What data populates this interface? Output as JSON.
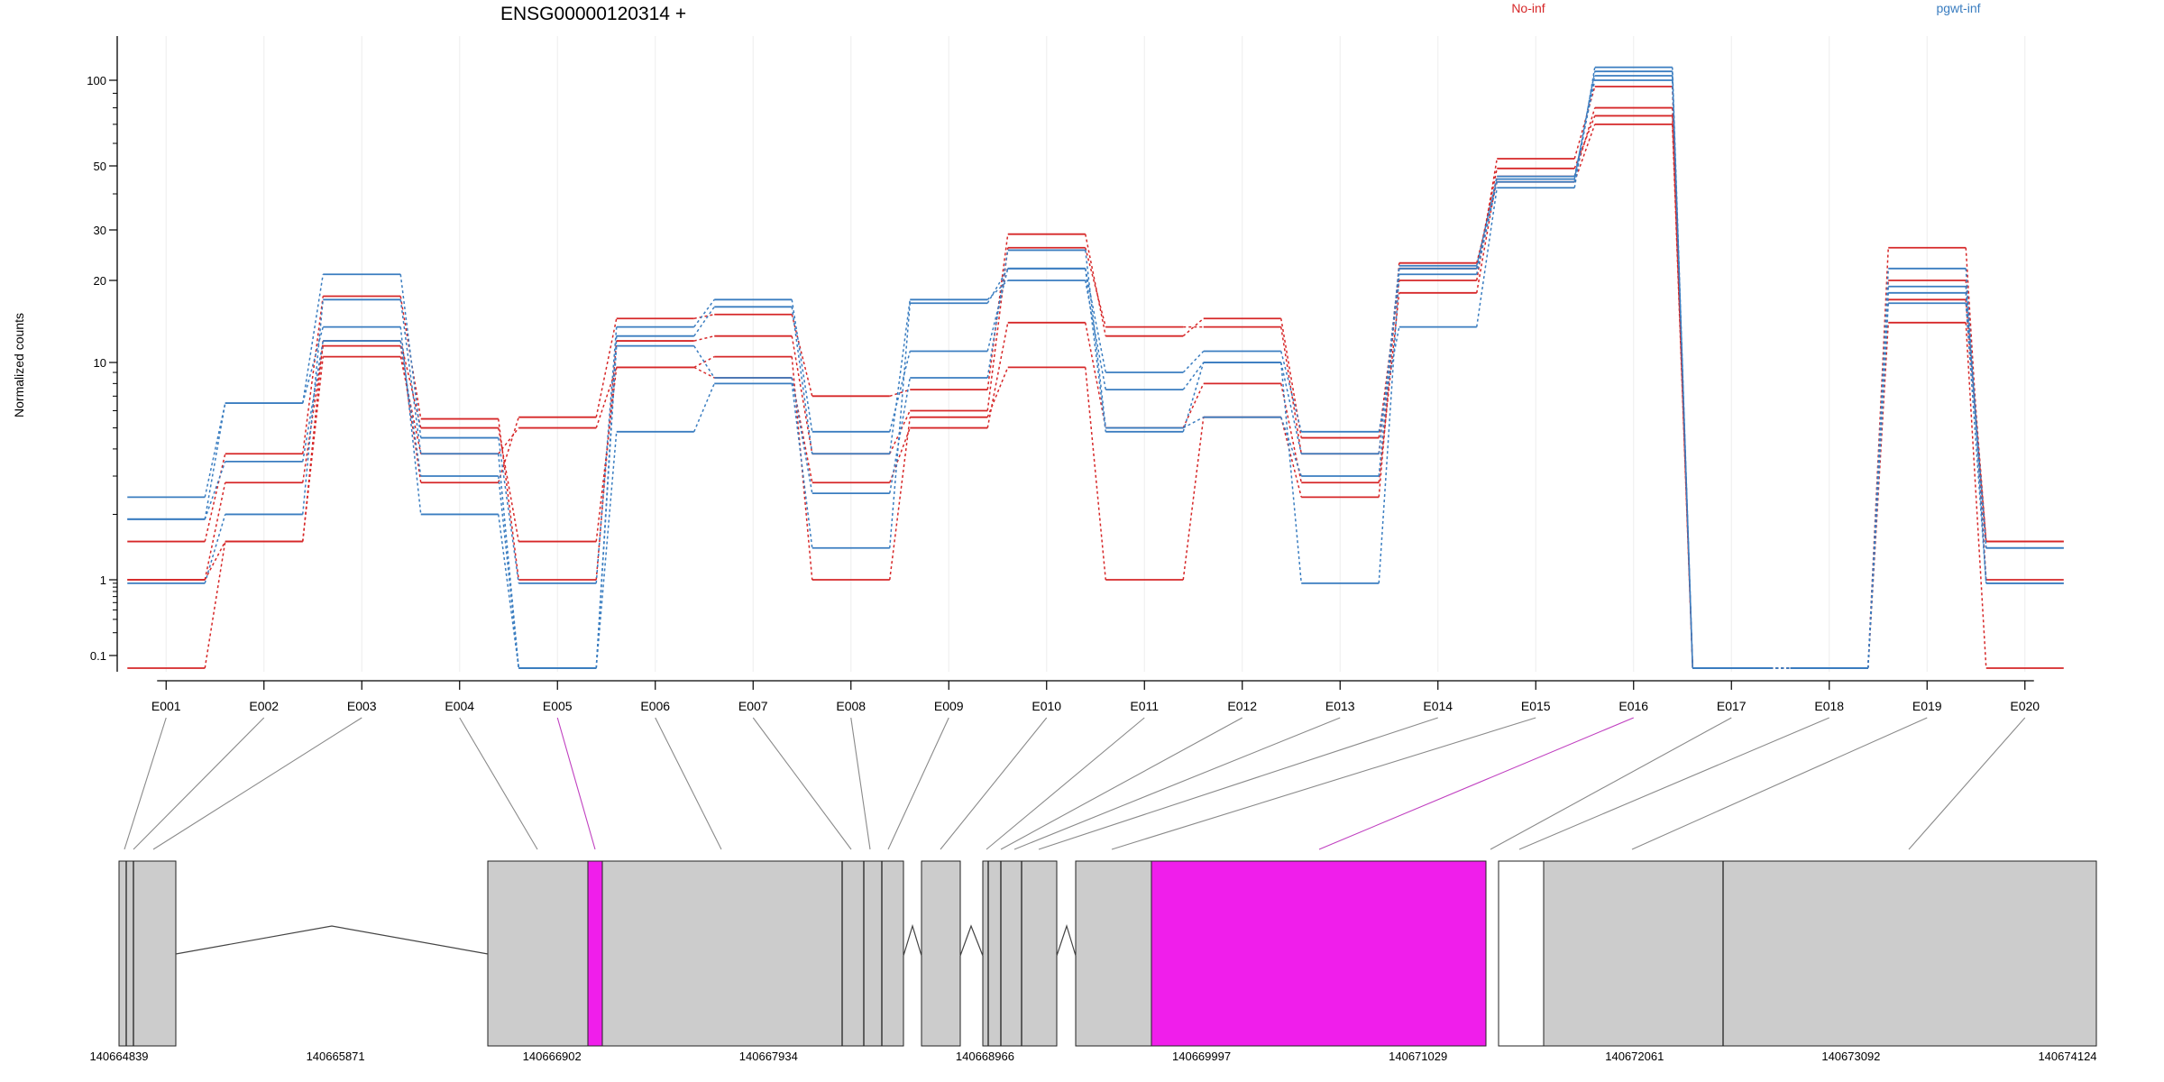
{
  "chart_data": {
    "type": "line",
    "title": "ENSG00000120314 +",
    "ylabel": "Normalized counts",
    "xlabel": "",
    "y_scale": "log",
    "ylim": [
      0.08,
      130
    ],
    "y_ticks": [
      0.1,
      1,
      10,
      20,
      30,
      50,
      100
    ],
    "grid": false,
    "legend_position": "top",
    "legend": [
      {
        "name": "No-inf",
        "color": "#d62728"
      },
      {
        "name": "pgwt-inf",
        "color": "#3a7dc0"
      }
    ],
    "categories": [
      "E001",
      "E002",
      "E003",
      "E004",
      "E005",
      "E006",
      "E007",
      "E008",
      "E009",
      "E010",
      "E011",
      "E012",
      "E013",
      "E014",
      "E015",
      "E016",
      "E017",
      "E018",
      "E019",
      "E020"
    ],
    "highlighted_exons": [
      "E005",
      "E016"
    ],
    "series": [
      {
        "name": "No-inf",
        "values": [
          1.0,
          2.8,
          11.5,
          2.8,
          5.6,
          14.5,
          15,
          7.0,
          7.5,
          29,
          12.5,
          14.5,
          4.5,
          20,
          53,
          95,
          0.07,
          0.07,
          26,
          1.0
        ]
      },
      {
        "name": "No-inf",
        "values": [
          1.5,
          3.8,
          17.5,
          5.5,
          1.0,
          12,
          12.5,
          3.8,
          6.0,
          26,
          13.5,
          13.5,
          3.8,
          22,
          49,
          75,
          0.07,
          0.07,
          20,
          1.5
        ]
      },
      {
        "name": "No-inf",
        "values": [
          0.07,
          1.5,
          12,
          5.0,
          1.5,
          9.5,
          8.5,
          2.8,
          5.0,
          14,
          5.0,
          8.0,
          2.8,
          18,
          46,
          80,
          0.07,
          0.07,
          14,
          0.07
        ]
      },
      {
        "name": "No-inf",
        "values": [
          1.0,
          1.5,
          10.5,
          3.8,
          5.0,
          9.5,
          10.5,
          1.0,
          5.6,
          9.5,
          1.0,
          5.6,
          2.4,
          23,
          44,
          70,
          0.07,
          0.07,
          17,
          1.5
        ]
      },
      {
        "name": "pgwt-inf",
        "values": [
          2.4,
          6.5,
          21,
          4.5,
          0.9,
          13.5,
          17,
          4.8,
          11,
          22,
          9.0,
          11,
          4.8,
          13.5,
          42,
          115,
          0.07,
          0.07,
          22,
          0.9
        ]
      },
      {
        "name": "pgwt-inf",
        "values": [
          1.9,
          6.5,
          13.5,
          2.0,
          0.07,
          12.5,
          16,
          3.8,
          17,
          20,
          7.5,
          10,
          3.8,
          22,
          45,
          110,
          0.07,
          0.07,
          18,
          1.4
        ]
      },
      {
        "name": "pgwt-inf",
        "values": [
          0.9,
          2.0,
          17,
          3.8,
          0.07,
          4.8,
          8.0,
          1.4,
          16.5,
          22,
          4.8,
          10,
          0.9,
          21,
          44,
          105,
          0.07,
          0.07,
          16.5,
          0.9
        ]
      },
      {
        "name": "pgwt-inf",
        "values": [
          1.9,
          3.5,
          12,
          3.0,
          0.07,
          11.5,
          8.5,
          2.5,
          8.5,
          25.5,
          5.0,
          5.6,
          3.0,
          22.5,
          46,
          100,
          0.07,
          0.07,
          19,
          1.4
        ]
      }
    ],
    "gene_model": {
      "coordinate_ticks": [
        "140664839",
        "140665871",
        "140666902",
        "140667934",
        "140668966",
        "140669997",
        "140671029",
        "140672061",
        "140673092",
        "140674124"
      ],
      "exon_colors": {
        "normal": "#cccccc",
        "highlight": "#f01eeb"
      }
    }
  }
}
